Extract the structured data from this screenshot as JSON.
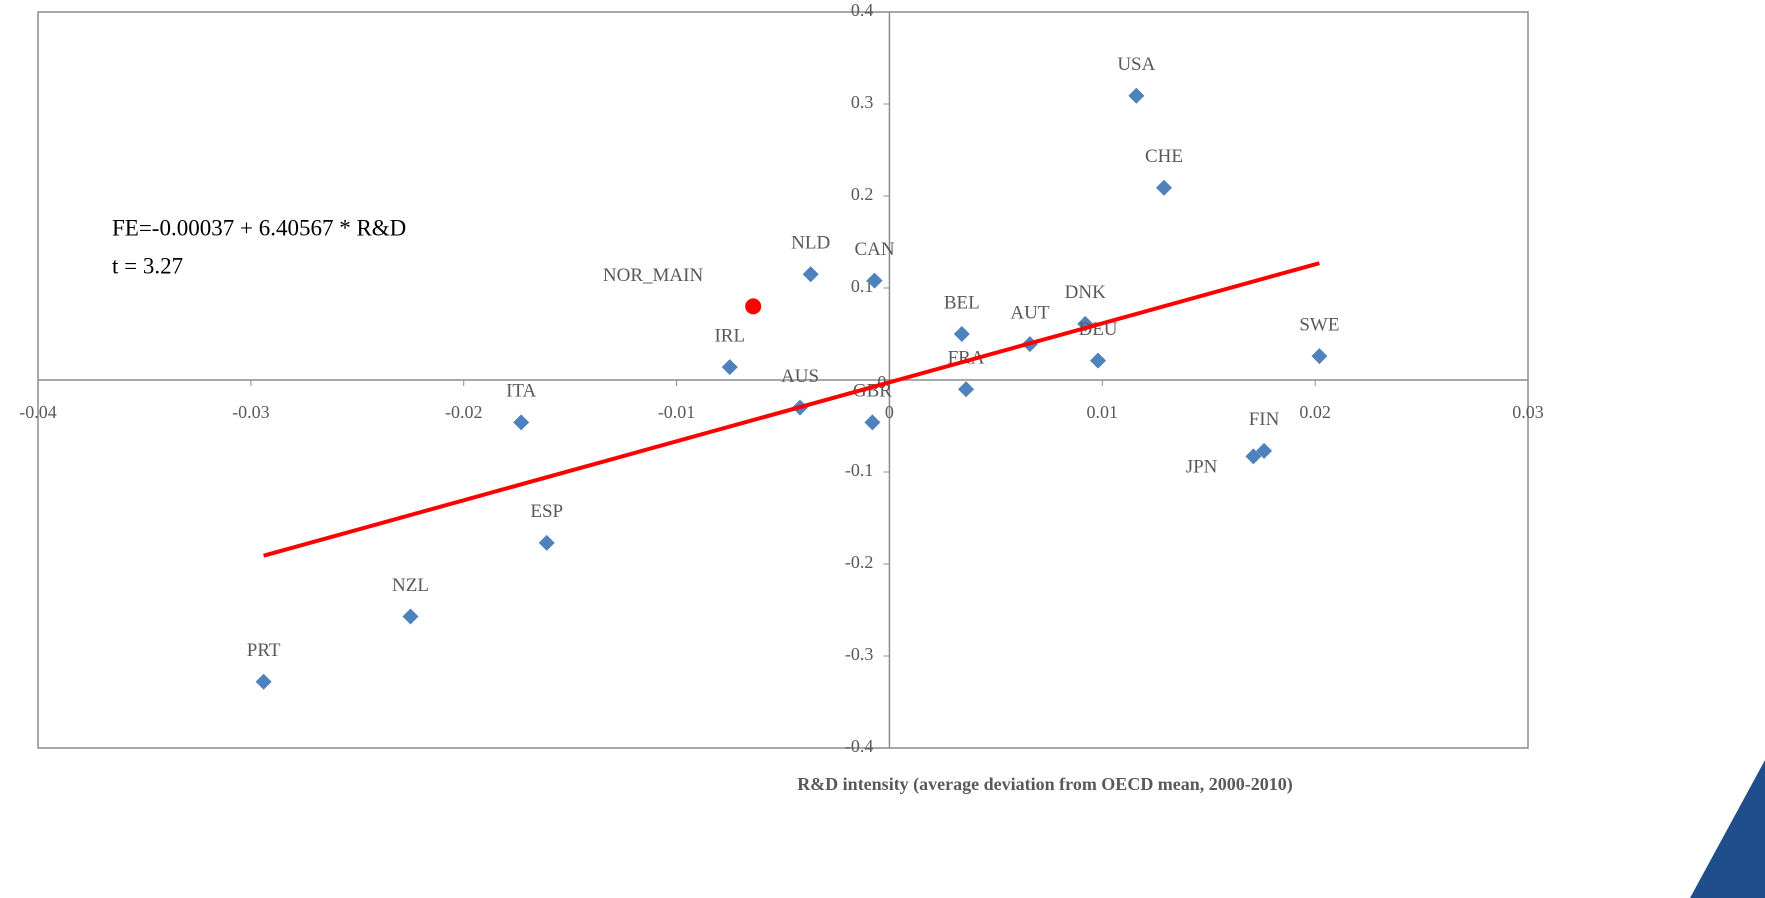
{
  "chart_data": {
    "type": "scatter",
    "xlim": [
      -0.04,
      0.03
    ],
    "ylim": [
      -0.4,
      0.4
    ],
    "xticks": [
      -0.04,
      -0.03,
      -0.02,
      -0.01,
      0,
      0.01,
      0.02,
      0.03
    ],
    "yticks": [
      -0.4,
      -0.3,
      -0.2,
      -0.1,
      0.1,
      0.2,
      0.3,
      0.4
    ],
    "x_label": "R&D intensity (average deviation from OECD mean, 2000-2010)",
    "annotations": [
      "FE=-0.00037 + 6.40567 * R&D",
      "t = 3.27"
    ],
    "series": [
      {
        "color": "#4f81bd",
        "marker": "diamond",
        "labels": [
          "USA",
          "CHE",
          "NLD",
          "CAN",
          "BEL",
          "AUT",
          "DNK",
          "DEU",
          "SWE",
          "IRL",
          "AUS",
          "GBR",
          "FRA",
          "ITA",
          "FIN",
          "JPN",
          "ESP",
          "NZL",
          "PRT"
        ],
        "x": [
          0.0116,
          0.0129,
          -0.0037,
          -0.0007,
          0.0034,
          0.0066,
          0.0092,
          0.0098,
          0.0202,
          -0.0075,
          -0.0042,
          -0.0008,
          0.0036,
          -0.0173,
          0.0176,
          0.0171,
          -0.0161,
          -0.0225,
          -0.0294
        ],
        "values": [
          0.309,
          0.209,
          0.115,
          0.108,
          0.05,
          0.039,
          0.061,
          0.021,
          0.026,
          0.014,
          -0.03,
          -0.046,
          -0.01,
          -0.046,
          -0.077,
          -0.083,
          -0.177,
          -0.257,
          -0.328
        ]
      },
      {
        "color": "#ff0000",
        "marker": "circle",
        "labels": [
          "NOR_MAIN"
        ],
        "x": [
          -0.0064
        ],
        "values": [
          0.08
        ]
      },
      {
        "color": "#ff0000",
        "marker": "line",
        "x": [
          -0.0294,
          0.0202
        ],
        "values": [
          -0.191,
          0.127
        ]
      }
    ]
  }
}
